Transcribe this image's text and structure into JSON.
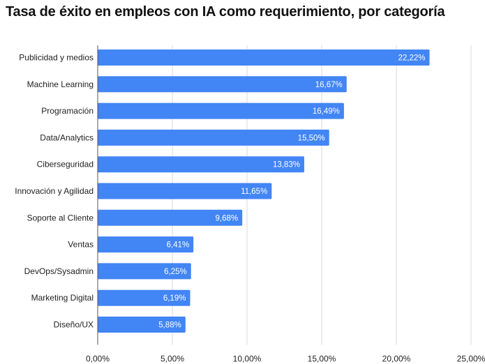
{
  "chart_data": {
    "type": "bar",
    "orientation": "horizontal",
    "title": "Tasa de éxito en empleos con IA como requerimiento, por categoría",
    "categories": [
      "Publicidad y medios",
      "Machine Learning",
      "Programación",
      "Data/Analytics",
      "Ciberseguridad",
      "Innovación y Agilidad",
      "Soporte al Cliente",
      "Ventas",
      "DevOps/Sysadmin",
      "Marketing Digital",
      "Diseño/UX"
    ],
    "values": [
      22.22,
      16.67,
      16.49,
      15.5,
      13.83,
      11.65,
      9.68,
      6.41,
      6.25,
      6.19,
      5.88
    ],
    "data_labels": [
      "22,22%",
      "16,67%",
      "16,49%",
      "15,50%",
      "13,83%",
      "11,65%",
      "9,68%",
      "6,41%",
      "6,25%",
      "6,19%",
      "5,88%"
    ],
    "x_ticks": [
      0,
      5,
      10,
      15,
      20,
      25
    ],
    "x_tick_labels": [
      "0,00%",
      "5,00%",
      "10,00%",
      "15,00%",
      "20,00%",
      "25,00%"
    ],
    "xlim": [
      0,
      25
    ],
    "xlabel": "",
    "ylabel": "",
    "grid": "vertical",
    "legend": "none",
    "bar_color": "#4285f4"
  }
}
